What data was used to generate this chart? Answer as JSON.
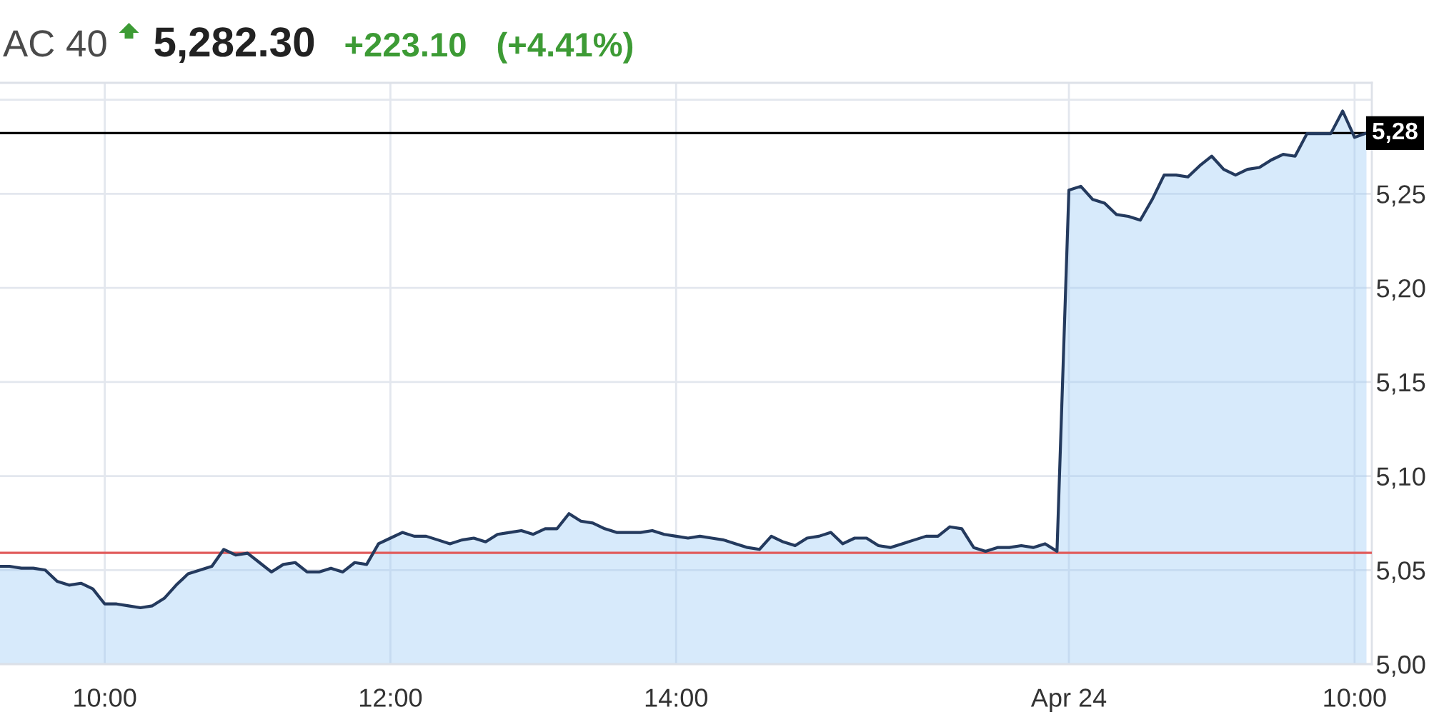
{
  "chart_data": {
    "type": "area",
    "title": "AC 40",
    "annotations": [
      "5,282.30",
      "+223.10",
      "(+4.41%)"
    ],
    "categories": [
      null,
      null,
      null,
      null,
      null,
      null,
      null,
      null,
      null,
      "10:00",
      null,
      null,
      null,
      null,
      null,
      null,
      null,
      null,
      null,
      null,
      null,
      null,
      null,
      null,
      null,
      null,
      null,
      null,
      null,
      null,
      null,
      null,
      null,
      "12:00",
      null,
      null,
      null,
      null,
      null,
      null,
      null,
      null,
      null,
      null,
      null,
      null,
      null,
      null,
      null,
      null,
      null,
      null,
      null,
      null,
      null,
      null,
      null,
      "14:00",
      null,
      null,
      null,
      null,
      null,
      null,
      null,
      null,
      null,
      null,
      null,
      null,
      null,
      null,
      null,
      null,
      null,
      null,
      null,
      null,
      null,
      null,
      null,
      null,
      null,
      null,
      null,
      null,
      null,
      null,
      null,
      null,
      "Apr 24",
      null,
      null,
      null,
      null,
      null,
      null,
      null,
      null,
      null,
      null,
      null,
      null,
      null,
      null,
      null,
      null,
      null,
      null,
      null,
      null,
      null,
      null,
      null,
      "10:00",
      null
    ],
    "series": [
      {
        "color": "#243a5e",
        "values": [
          5.052,
          5.052,
          5.051,
          5.051,
          5.05,
          5.044,
          5.042,
          5.043,
          5.04,
          5.032,
          5.032,
          5.031,
          5.03,
          5.031,
          5.035,
          5.042,
          5.048,
          5.05,
          5.052,
          5.061,
          5.058,
          5.059,
          5.054,
          5.049,
          5.053,
          5.054,
          5.049,
          5.049,
          5.051,
          5.049,
          5.054,
          5.053,
          5.064,
          5.067,
          5.07,
          5.068,
          5.068,
          5.066,
          5.064,
          5.066,
          5.067,
          5.065,
          5.069,
          5.07,
          5.071,
          5.069,
          5.072,
          5.072,
          5.08,
          5.076,
          5.075,
          5.072,
          5.07,
          5.07,
          5.07,
          5.071,
          5.069,
          5.068,
          5.067,
          5.068,
          5.067,
          5.066,
          5.064,
          5.062,
          5.061,
          5.068,
          5.065,
          5.063,
          5.067,
          5.068,
          5.07,
          5.064,
          5.067,
          5.067,
          5.063,
          5.062,
          5.064,
          5.066,
          5.068,
          5.068,
          5.073,
          5.072,
          5.062,
          5.06,
          5.062,
          5.062,
          5.063,
          5.062,
          5.064,
          5.06,
          5.252,
          5.254,
          5.247,
          5.245,
          5.239,
          5.238,
          5.236,
          5.247,
          5.26,
          5.26,
          5.259,
          5.265,
          5.27,
          5.263,
          5.26,
          5.263,
          5.264,
          5.268,
          5.271,
          5.27,
          5.282,
          5.282,
          5.282,
          5.294,
          5.28,
          5.2823
        ]
      }
    ],
    "ylim": [
      5.0,
      5.309
    ],
    "yticks": [
      {
        "value": 5.0,
        "label": "5,00"
      },
      {
        "value": 5.05,
        "label": "5,05"
      },
      {
        "value": 5.1,
        "label": "5,10"
      },
      {
        "value": 5.15,
        "label": "5,15"
      },
      {
        "value": 5.2,
        "label": "5,20"
      },
      {
        "value": 5.25,
        "label": "5,25"
      },
      {
        "value": 5.3,
        "label": null
      }
    ],
    "ref_lines": [
      {
        "axis": "y",
        "value": 5.2823,
        "label": "5,28",
        "color": "#000000"
      },
      {
        "axis": "y",
        "value": 5.0592,
        "color": "#e15b5b"
      }
    ],
    "grid": true
  }
}
